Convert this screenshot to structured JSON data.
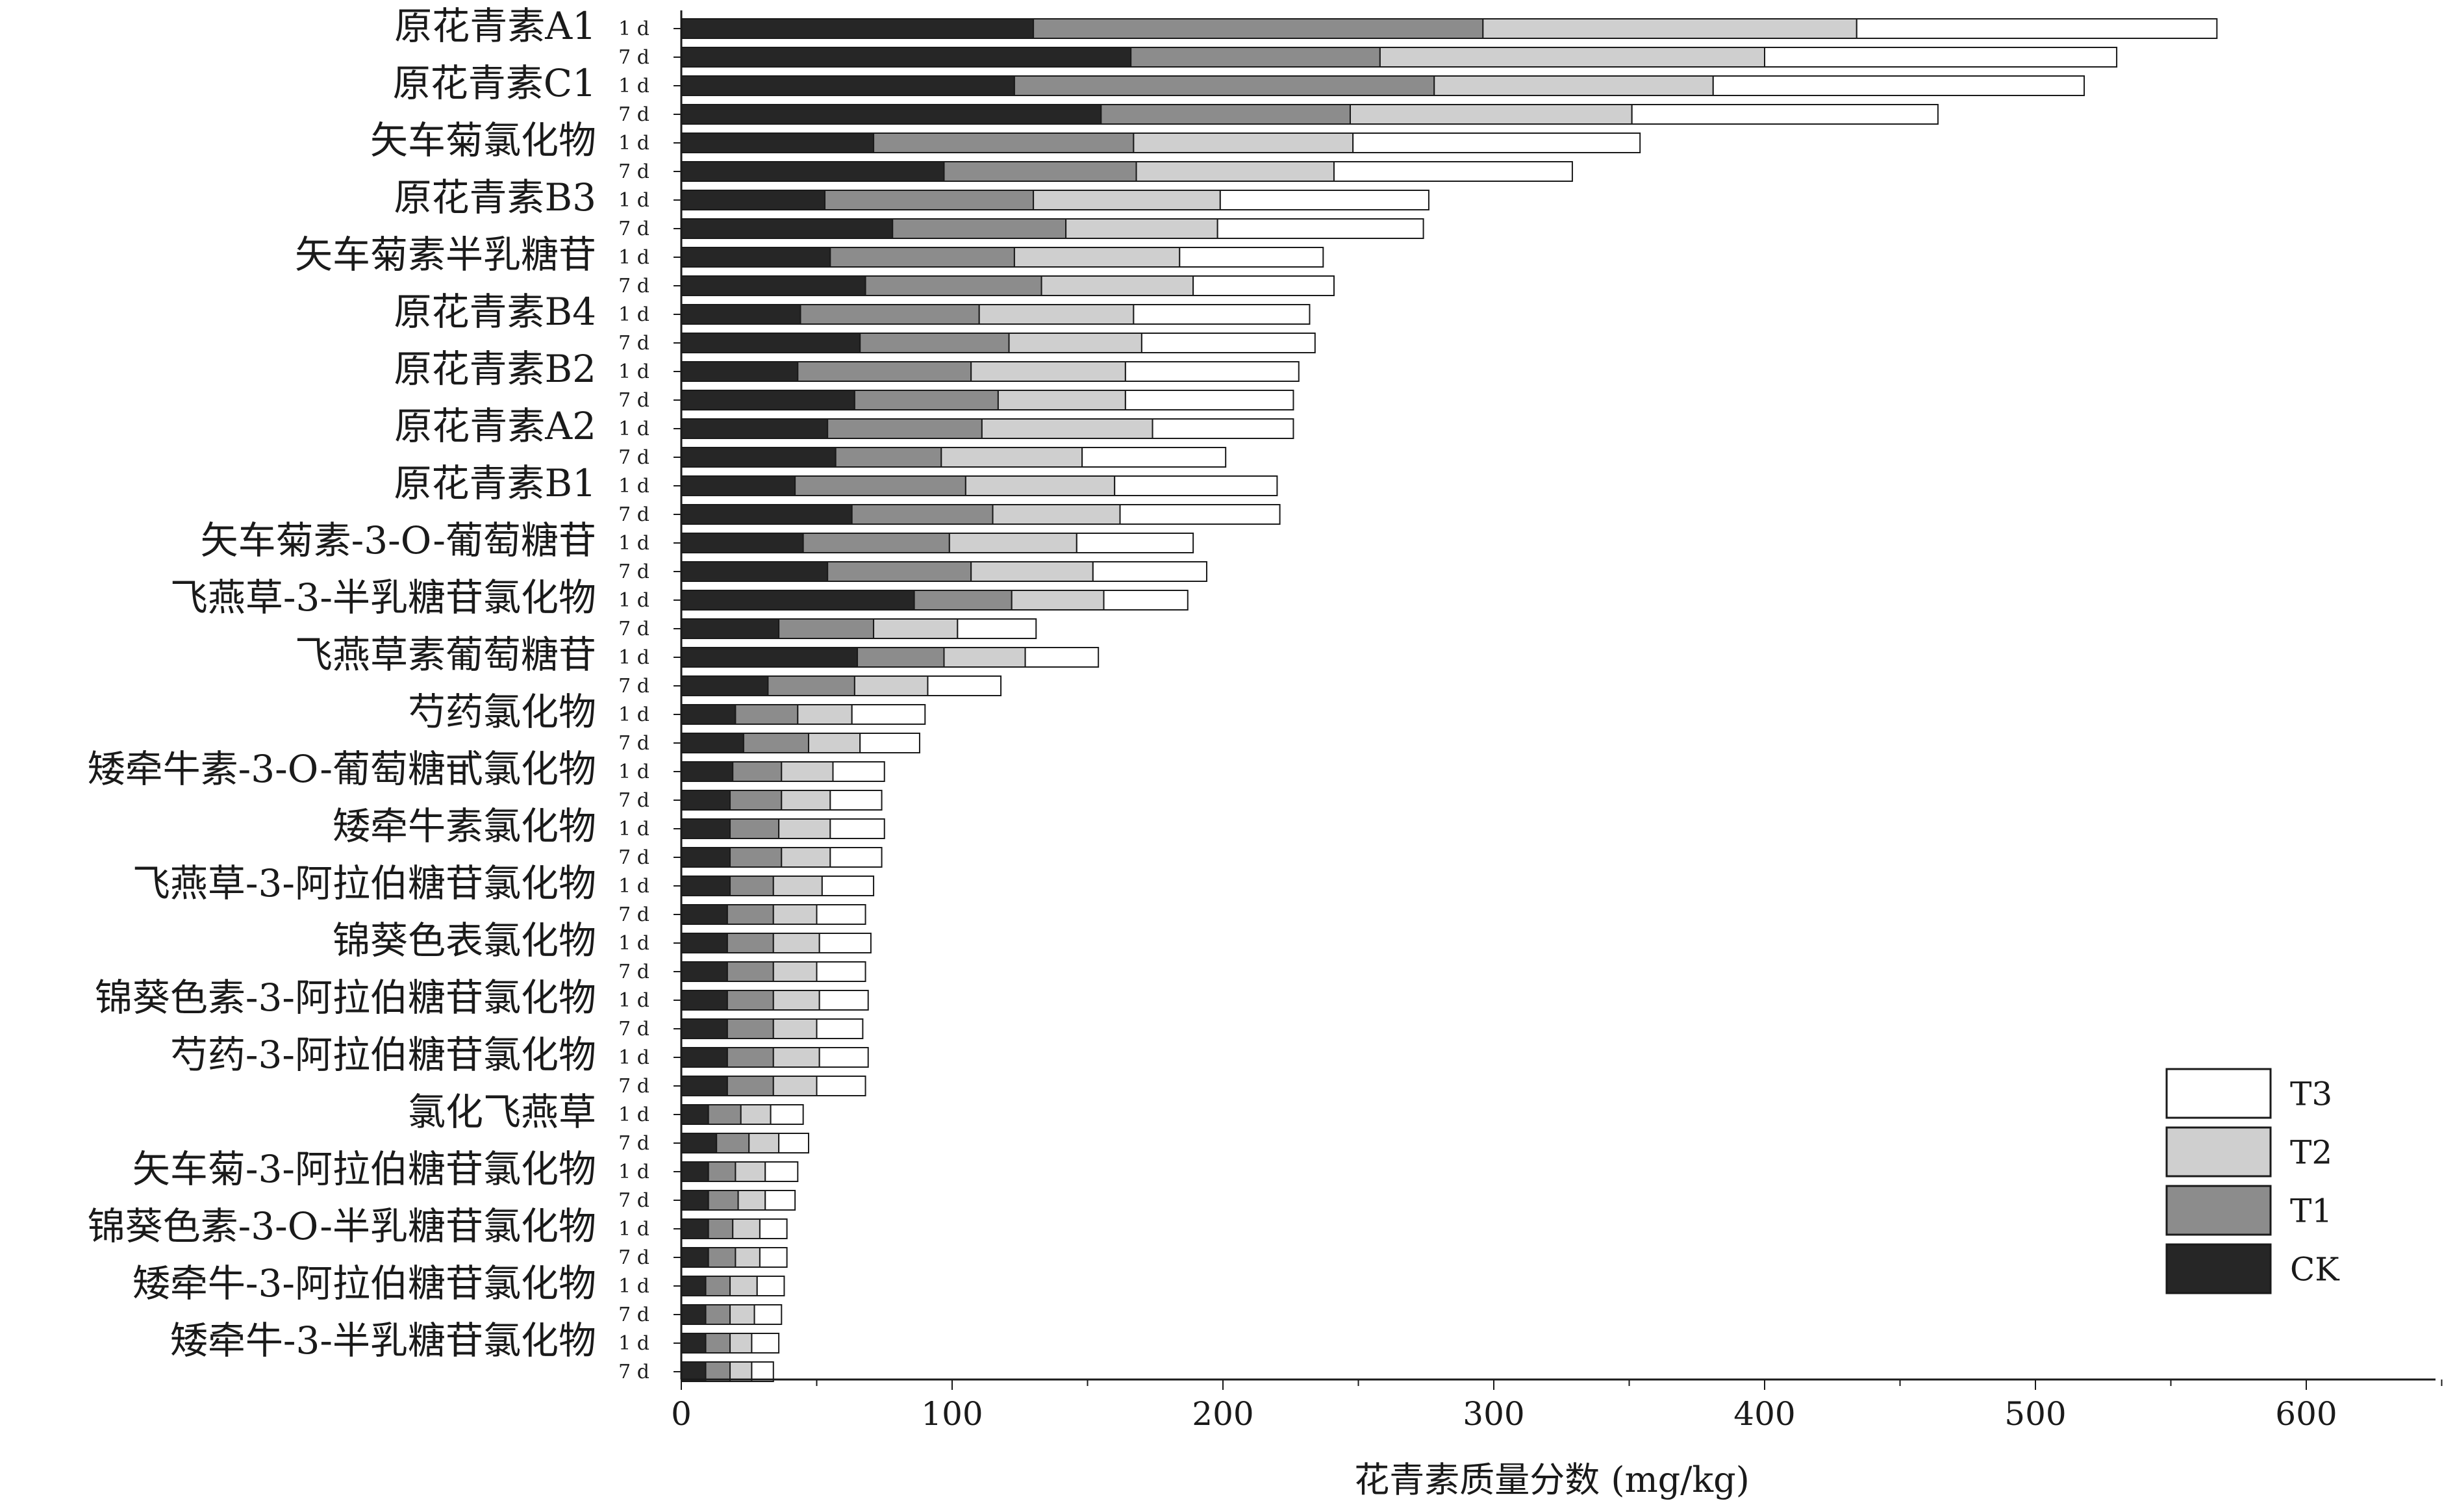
{
  "chart_data": {
    "type": "bar",
    "orientation": "horizontal",
    "stacked": true,
    "xlabel": "花青素质量分数 (mg/kg)",
    "ylabel": "",
    "xlim": [
      0,
      650
    ],
    "xticks": [
      0,
      100,
      200,
      300,
      400,
      500,
      600
    ],
    "legend": {
      "placement": "bottom-right",
      "entries": [
        "T3",
        "T2",
        "T1",
        "CK"
      ]
    },
    "series_order": [
      "CK",
      "T1",
      "T2",
      "T3"
    ],
    "colors": {
      "CK": "#262626",
      "T1": "#8c8c8c",
      "T2": "#cfcfcf",
      "T3": "#ffffff"
    },
    "groups": [
      {
        "name": "原花青素A1",
        "bars": [
          {
            "day": "1 d",
            "CK": 130,
            "T1": 166,
            "T2": 138,
            "T3": 133
          },
          {
            "day": "7 d",
            "CK": 166,
            "T1": 92,
            "T2": 142,
            "T3": 130
          }
        ]
      },
      {
        "name": "原花青素C1",
        "bars": [
          {
            "day": "1 d",
            "CK": 123,
            "T1": 155,
            "T2": 103,
            "T3": 137
          },
          {
            "day": "7 d",
            "CK": 155,
            "T1": 92,
            "T2": 104,
            "T3": 113
          }
        ]
      },
      {
        "name": "矢车菊氯化物",
        "bars": [
          {
            "day": "1 d",
            "CK": 71,
            "T1": 96,
            "T2": 81,
            "T3": 106
          },
          {
            "day": "7 d",
            "CK": 97,
            "T1": 71,
            "T2": 73,
            "T3": 88
          }
        ]
      },
      {
        "name": "原花青素B3",
        "bars": [
          {
            "day": "1 d",
            "CK": 53,
            "T1": 77,
            "T2": 69,
            "T3": 77
          },
          {
            "day": "7 d",
            "CK": 78,
            "T1": 64,
            "T2": 56,
            "T3": 76
          }
        ]
      },
      {
        "name": "矢车菊素半乳糖苷",
        "bars": [
          {
            "day": "1 d",
            "CK": 55,
            "T1": 68,
            "T2": 61,
            "T3": 53
          },
          {
            "day": "7 d",
            "CK": 68,
            "T1": 65,
            "T2": 56,
            "T3": 52
          }
        ]
      },
      {
        "name": "原花青素B4",
        "bars": [
          {
            "day": "1 d",
            "CK": 44,
            "T1": 66,
            "T2": 57,
            "T3": 65
          },
          {
            "day": "7 d",
            "CK": 66,
            "T1": 55,
            "T2": 49,
            "T3": 64
          }
        ]
      },
      {
        "name": "原花青素B2",
        "bars": [
          {
            "day": "1 d",
            "CK": 43,
            "T1": 64,
            "T2": 57,
            "T3": 64
          },
          {
            "day": "7 d",
            "CK": 64,
            "T1": 53,
            "T2": 47,
            "T3": 62
          }
        ]
      },
      {
        "name": "原花青素A2",
        "bars": [
          {
            "day": "1 d",
            "CK": 54,
            "T1": 57,
            "T2": 63,
            "T3": 52
          },
          {
            "day": "7 d",
            "CK": 57,
            "T1": 39,
            "T2": 52,
            "T3": 53
          }
        ]
      },
      {
        "name": "原花青素B1",
        "bars": [
          {
            "day": "1 d",
            "CK": 42,
            "T1": 63,
            "T2": 55,
            "T3": 60
          },
          {
            "day": "7 d",
            "CK": 63,
            "T1": 52,
            "T2": 47,
            "T3": 59
          }
        ]
      },
      {
        "name": "矢车菊素-3-O-葡萄糖苷",
        "bars": [
          {
            "day": "1 d",
            "CK": 45,
            "T1": 54,
            "T2": 47,
            "T3": 43
          },
          {
            "day": "7 d",
            "CK": 54,
            "T1": 53,
            "T2": 45,
            "T3": 42
          }
        ]
      },
      {
        "name": "飞燕草-3-半乳糖苷氯化物",
        "bars": [
          {
            "day": "1 d",
            "CK": 86,
            "T1": 36,
            "T2": 34,
            "T3": 31
          },
          {
            "day": "7 d",
            "CK": 36,
            "T1": 35,
            "T2": 31,
            "T3": 29
          }
        ]
      },
      {
        "name": "飞燕草素葡萄糖苷",
        "bars": [
          {
            "day": "1 d",
            "CK": 65,
            "T1": 32,
            "T2": 30,
            "T3": 27
          },
          {
            "day": "7 d",
            "CK": 32,
            "T1": 32,
            "T2": 27,
            "T3": 27
          }
        ]
      },
      {
        "name": "芍药氯化物",
        "bars": [
          {
            "day": "1 d",
            "CK": 20,
            "T1": 23,
            "T2": 20,
            "T3": 27
          },
          {
            "day": "7 d",
            "CK": 23,
            "T1": 24,
            "T2": 19,
            "T3": 22
          }
        ]
      },
      {
        "name": "矮牵牛素-3-O-葡萄糖甙氯化物",
        "bars": [
          {
            "day": "1 d",
            "CK": 19,
            "T1": 18,
            "T2": 19,
            "T3": 19
          },
          {
            "day": "7 d",
            "CK": 18,
            "T1": 19,
            "T2": 18,
            "T3": 19
          }
        ]
      },
      {
        "name": "矮牵牛素氯化物",
        "bars": [
          {
            "day": "1 d",
            "CK": 18,
            "T1": 18,
            "T2": 19,
            "T3": 20
          },
          {
            "day": "7 d",
            "CK": 18,
            "T1": 19,
            "T2": 18,
            "T3": 19
          }
        ]
      },
      {
        "name": "飞燕草-3-阿拉伯糖苷氯化物",
        "bars": [
          {
            "day": "1 d",
            "CK": 18,
            "T1": 16,
            "T2": 18,
            "T3": 19
          },
          {
            "day": "7 d",
            "CK": 17,
            "T1": 17,
            "T2": 16,
            "T3": 18
          }
        ]
      },
      {
        "name": "锦葵色表氯化物",
        "bars": [
          {
            "day": "1 d",
            "CK": 17,
            "T1": 17,
            "T2": 17,
            "T3": 19
          },
          {
            "day": "7 d",
            "CK": 17,
            "T1": 17,
            "T2": 16,
            "T3": 18
          }
        ]
      },
      {
        "name": "锦葵色素-3-阿拉伯糖苷氯化物",
        "bars": [
          {
            "day": "1 d",
            "CK": 17,
            "T1": 17,
            "T2": 17,
            "T3": 18
          },
          {
            "day": "7 d",
            "CK": 17,
            "T1": 17,
            "T2": 16,
            "T3": 17
          }
        ]
      },
      {
        "name": "芍药-3-阿拉伯糖苷氯化物",
        "bars": [
          {
            "day": "1 d",
            "CK": 17,
            "T1": 17,
            "T2": 17,
            "T3": 18
          },
          {
            "day": "7 d",
            "CK": 17,
            "T1": 17,
            "T2": 16,
            "T3": 18
          }
        ]
      },
      {
        "name": "氯化飞燕草",
        "bars": [
          {
            "day": "1 d",
            "CK": 10,
            "T1": 12,
            "T2": 11,
            "T3": 12
          },
          {
            "day": "7 d",
            "CK": 13,
            "T1": 12,
            "T2": 11,
            "T3": 11
          }
        ]
      },
      {
        "name": "矢车菊-3-阿拉伯糖苷氯化物",
        "bars": [
          {
            "day": "1 d",
            "CK": 10,
            "T1": 10,
            "T2": 11,
            "T3": 12
          },
          {
            "day": "7 d",
            "CK": 10,
            "T1": 11,
            "T2": 10,
            "T3": 11
          }
        ]
      },
      {
        "name": "锦葵色素-3-O-半乳糖苷氯化物",
        "bars": [
          {
            "day": "1 d",
            "CK": 10,
            "T1": 9,
            "T2": 10,
            "T3": 10
          },
          {
            "day": "7 d",
            "CK": 10,
            "T1": 10,
            "T2": 9,
            "T3": 10
          }
        ]
      },
      {
        "name": "矮牵牛-3-阿拉伯糖苷氯化物",
        "bars": [
          {
            "day": "1 d",
            "CK": 9,
            "T1": 9,
            "T2": 10,
            "T3": 10
          },
          {
            "day": "7 d",
            "CK": 9,
            "T1": 9,
            "T2": 9,
            "T3": 10
          }
        ]
      },
      {
        "name": "矮牵牛-3-半乳糖苷氯化物",
        "bars": [
          {
            "day": "1 d",
            "CK": 9,
            "T1": 9,
            "T2": 8,
            "T3": 10
          },
          {
            "day": "7 d",
            "CK": 9,
            "T1": 9,
            "T2": 8,
            "T3": 8
          }
        ]
      }
    ]
  }
}
